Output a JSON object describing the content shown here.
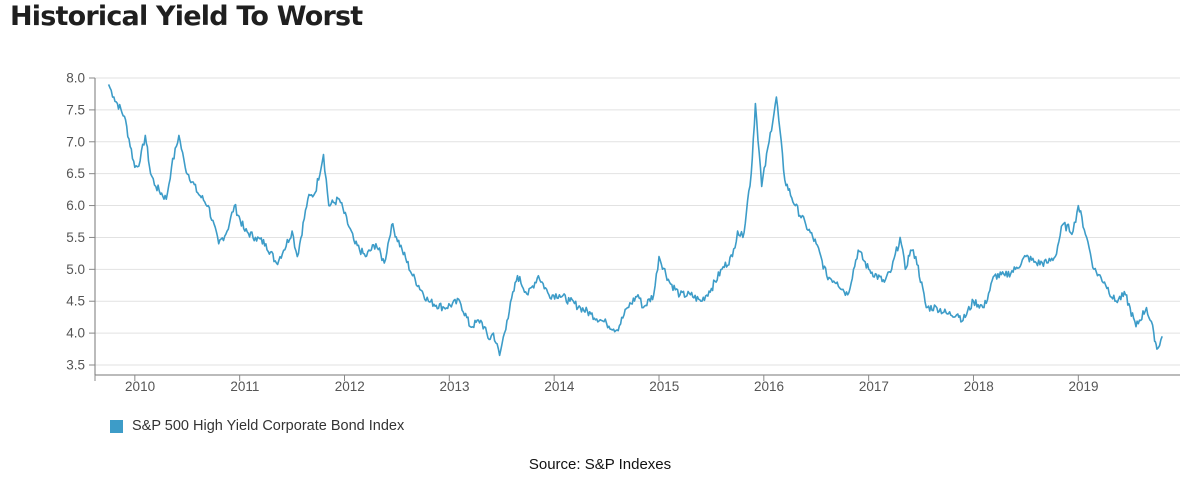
{
  "chart_data": {
    "type": "line",
    "title": "Historical Yield To Worst",
    "xlabel": "",
    "ylabel": "",
    "xlim": [
      2009.62,
      2019.97
    ],
    "ylim": [
      3.5,
      8.0
    ],
    "yticks": [
      "3.5",
      "4.0",
      "4.5",
      "5.0",
      "5.5",
      "6.0",
      "6.5",
      "7.0",
      "7.5",
      "8.0"
    ],
    "xticks": [
      "2010",
      "2011",
      "2012",
      "2013",
      "2014",
      "2015",
      "2016",
      "2017",
      "2018",
      "2019"
    ],
    "grid": "horizontal",
    "series": [
      {
        "name": "S&P 500 High Yield Corporate Bond Index",
        "color": "#3d9cc8",
        "x": [
          2009.75,
          2009.8,
          2009.9,
          2010.0,
          2010.05,
          2010.1,
          2010.15,
          2010.2,
          2010.3,
          2010.35,
          2010.42,
          2010.48,
          2010.6,
          2010.7,
          2010.8,
          2010.88,
          2010.95,
          2011.05,
          2011.15,
          2011.25,
          2011.35,
          2011.42,
          2011.5,
          2011.55,
          2011.65,
          2011.72,
          2011.8,
          2011.85,
          2011.95,
          2012.1,
          2012.2,
          2012.3,
          2012.38,
          2012.45,
          2012.55,
          2012.65,
          2012.8,
          2012.95,
          2013.1,
          2013.2,
          2013.3,
          2013.38,
          2013.42,
          2013.48,
          2013.55,
          2013.65,
          2013.75,
          2013.85,
          2013.95,
          2014.05,
          2014.15,
          2014.25,
          2014.35,
          2014.45,
          2014.5,
          2014.6,
          2014.7,
          2014.8,
          2014.85,
          2014.95,
          2015.0,
          2015.1,
          2015.2,
          2015.3,
          2015.4,
          2015.5,
          2015.6,
          2015.7,
          2015.75,
          2015.8,
          2015.88,
          2015.92,
          2015.98,
          2016.05,
          2016.12,
          2016.2,
          2016.3,
          2016.4,
          2016.5,
          2016.6,
          2016.7,
          2016.8,
          2016.9,
          2017.0,
          2017.15,
          2017.22,
          2017.3,
          2017.35,
          2017.4,
          2017.45,
          2017.55,
          2017.65,
          2017.75,
          2017.85,
          2017.9,
          2018.0,
          2018.1,
          2018.2,
          2018.3,
          2018.4,
          2018.5,
          2018.6,
          2018.7,
          2018.78,
          2018.85,
          2018.95,
          2019.0,
          2019.08,
          2019.15,
          2019.25,
          2019.35,
          2019.45,
          2019.55,
          2019.65,
          2019.72,
          2019.75,
          2019.8
        ],
        "values": [
          7.9,
          7.7,
          7.4,
          6.6,
          6.7,
          7.1,
          6.5,
          6.3,
          6.1,
          6.6,
          7.1,
          6.6,
          6.2,
          6.0,
          5.4,
          5.6,
          6.0,
          5.6,
          5.5,
          5.4,
          5.1,
          5.3,
          5.6,
          5.2,
          6.1,
          6.2,
          6.8,
          6.0,
          6.1,
          5.4,
          5.2,
          5.4,
          5.1,
          5.7,
          5.3,
          4.9,
          4.5,
          4.4,
          4.5,
          4.1,
          4.2,
          3.9,
          4.0,
          3.65,
          4.2,
          4.9,
          4.6,
          4.9,
          4.6,
          4.6,
          4.5,
          4.4,
          4.3,
          4.2,
          4.15,
          4.05,
          4.4,
          4.6,
          4.4,
          4.6,
          5.2,
          4.8,
          4.6,
          4.6,
          4.5,
          4.7,
          5.0,
          5.2,
          5.6,
          5.5,
          6.5,
          7.6,
          6.3,
          7.0,
          7.7,
          6.4,
          6.0,
          5.7,
          5.4,
          4.9,
          4.8,
          4.6,
          5.3,
          5.0,
          4.8,
          5.0,
          5.5,
          5.0,
          5.3,
          5.2,
          4.4,
          4.4,
          4.3,
          4.3,
          4.2,
          4.5,
          4.4,
          4.9,
          4.9,
          5.0,
          5.2,
          5.1,
          5.1,
          5.2,
          5.7,
          5.6,
          6.0,
          5.5,
          5.0,
          4.8,
          4.5,
          4.6,
          4.1,
          4.4,
          4.0,
          3.75,
          3.95
        ]
      }
    ]
  },
  "legend": {
    "label": "S&P 500 High Yield Corporate Bond Index"
  },
  "source": "Source: S&P Indexes"
}
